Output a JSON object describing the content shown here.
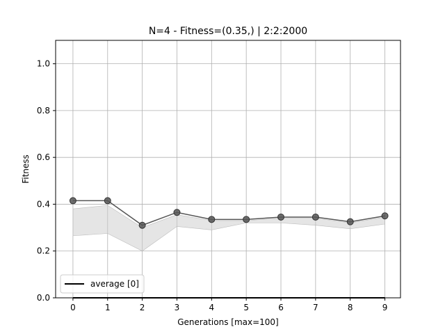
{
  "chart_data": {
    "type": "line",
    "title": "N=4  - Fitness=(0.35,) | 2:2:2000",
    "xlabel": "Generations [max=100]",
    "ylabel": "Fitness",
    "xlim": [
      -0.5,
      9.45
    ],
    "ylim": [
      0.0,
      1.1
    ],
    "x_ticks": [
      0,
      1,
      2,
      3,
      4,
      5,
      6,
      7,
      8,
      9
    ],
    "y_ticks": [
      0.0,
      0.2,
      0.4,
      0.6,
      0.8,
      1.0
    ],
    "y_tick_labels": [
      "0.0",
      "0.2",
      "0.4",
      "0.6",
      "0.8",
      "1.0"
    ],
    "grid": true,
    "legend": {
      "position": "lower-left",
      "entries": [
        "average [0]"
      ]
    },
    "series": [
      {
        "name": "average [0]",
        "kind": "line",
        "color": "#000000",
        "x": [
          0,
          1,
          2,
          3,
          4,
          5,
          6,
          7,
          8,
          9
        ],
        "values": [
          0,
          0,
          0,
          0,
          0,
          0,
          0,
          0,
          0,
          0
        ]
      },
      {
        "kind": "line-markers",
        "color": "#555555",
        "x": [
          0,
          1,
          2,
          3,
          4,
          5,
          6,
          7,
          8,
          9
        ],
        "values": [
          0.415,
          0.415,
          0.31,
          0.365,
          0.335,
          0.335,
          0.345,
          0.345,
          0.325,
          0.35
        ]
      },
      {
        "kind": "band",
        "color": "#cccccc",
        "x": [
          0,
          1,
          2,
          3,
          4,
          5,
          6,
          7,
          8,
          9
        ],
        "upper": [
          0.38,
          0.395,
          0.3,
          0.355,
          0.33,
          0.33,
          0.34,
          0.34,
          0.32,
          0.345
        ],
        "lower": [
          0.265,
          0.275,
          0.2,
          0.305,
          0.29,
          0.32,
          0.32,
          0.31,
          0.295,
          0.315
        ]
      }
    ]
  }
}
